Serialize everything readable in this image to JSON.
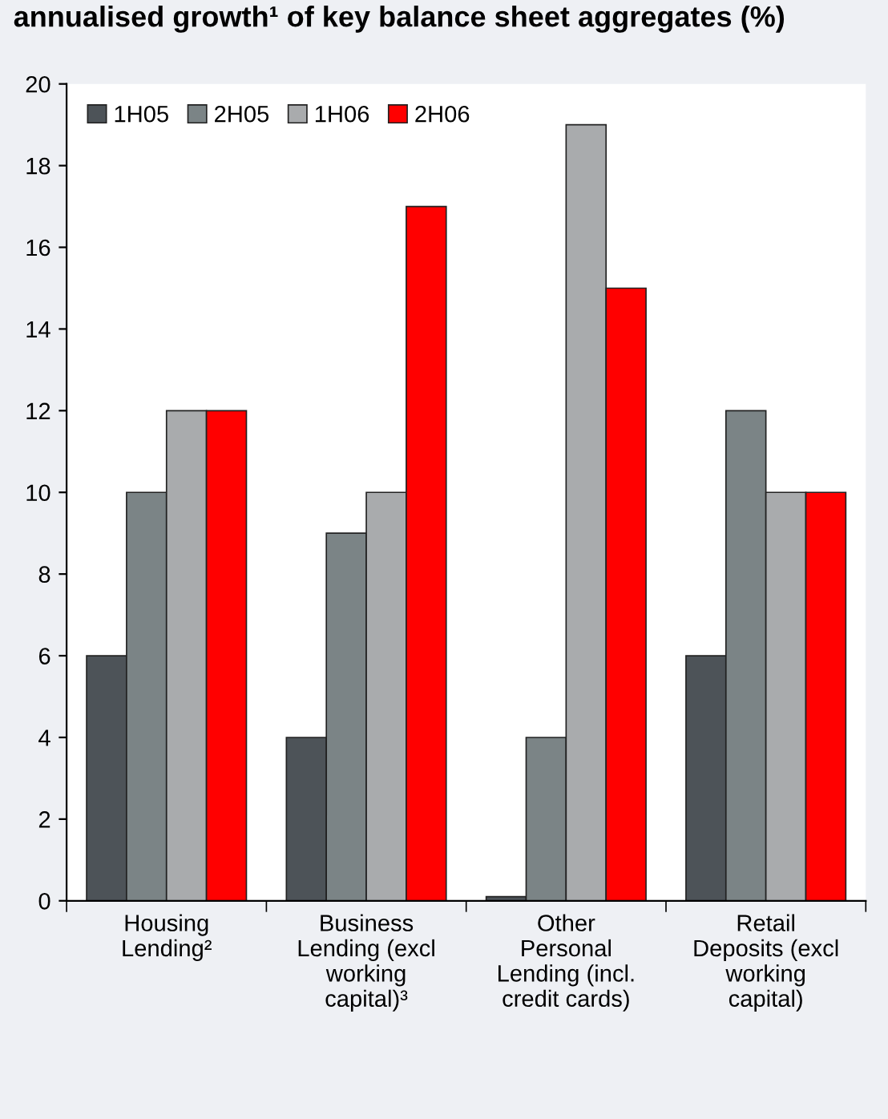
{
  "chart_data": {
    "type": "bar",
    "title": "annualised growth¹ of key balance sheet aggregates (%)",
    "categories": [
      "Housing\nLending²",
      "Business\nLending (excl\nworking\ncapital)³",
      "Other\nPersonal\nLending (incl.\ncredit cards)",
      "Retail\nDeposits (excl\nworking\ncapital)"
    ],
    "series": [
      {
        "name": "1H05",
        "color": "#4d5358",
        "values": [
          6,
          4,
          0.1,
          6
        ]
      },
      {
        "name": "2H05",
        "color": "#7b8486",
        "values": [
          10,
          9,
          4,
          12
        ]
      },
      {
        "name": "1H06",
        "color": "#a9abad",
        "values": [
          12,
          10,
          19,
          10
        ]
      },
      {
        "name": "2H06",
        "color": "#ff0000",
        "values": [
          12,
          17,
          15,
          10
        ]
      }
    ],
    "ylim": [
      0,
      20
    ],
    "yticks": [
      0,
      2,
      4,
      6,
      8,
      10,
      12,
      14,
      16,
      18,
      20
    ],
    "grid": false,
    "legend": "top left"
  }
}
